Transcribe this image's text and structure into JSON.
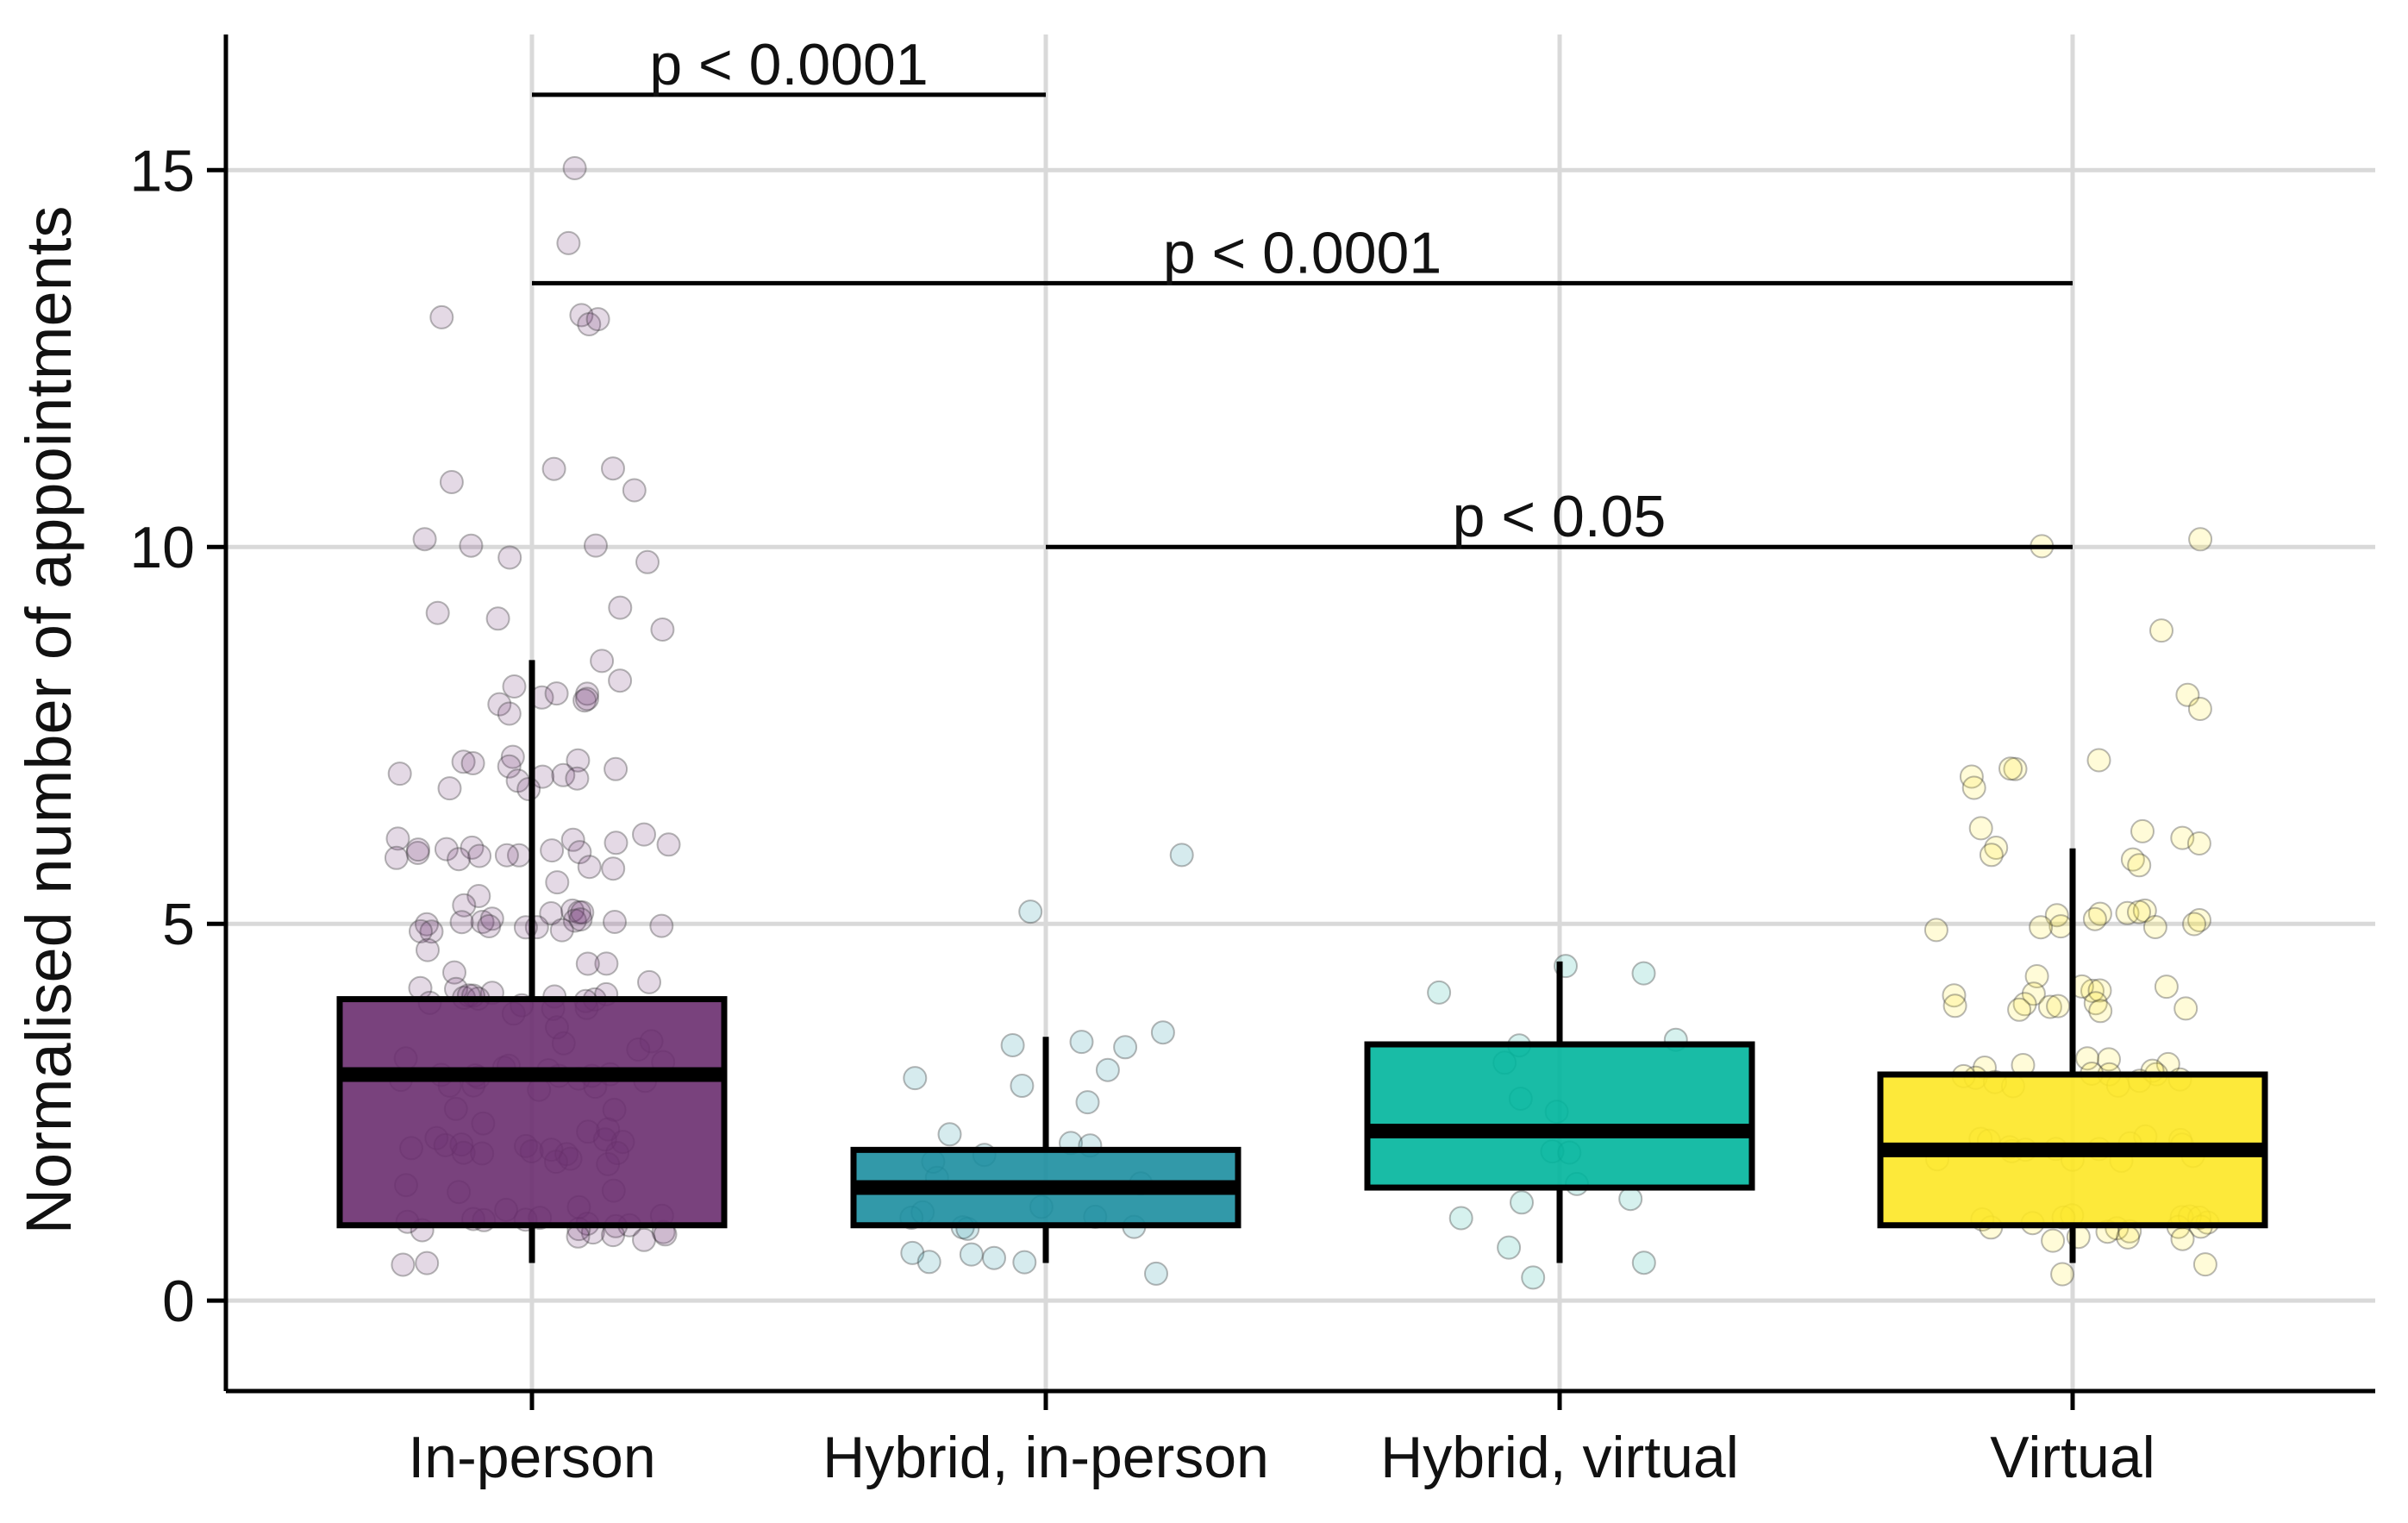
{
  "chart_data": {
    "type": "box",
    "title": "",
    "xlabel": "",
    "ylabel": "Normalised number of appointments",
    "ylim": [
      -1.2,
      16.8
    ],
    "yticks": [
      0,
      5,
      10,
      15
    ],
    "grid": true,
    "categories": [
      "In-person",
      "Hybrid, in-person",
      "Hybrid, virtual",
      "Virtual"
    ],
    "boxes": [
      {
        "category": "In-person",
        "whisker_low": 0.5,
        "q1": 1.0,
        "median": 3.0,
        "q3": 4.0,
        "whisker_high": 8.5,
        "color": "#6a2d6f"
      },
      {
        "category": "Hybrid, in-person",
        "whisker_low": 0.5,
        "q1": 1.0,
        "median": 1.5,
        "q3": 2.0,
        "whisker_high": 3.5,
        "color": "#1c8ea0"
      },
      {
        "category": "Hybrid, virtual",
        "whisker_low": 0.5,
        "q1": 1.5,
        "median": 2.25,
        "q3": 3.4,
        "whisker_high": 4.5,
        "color": "#00b59c"
      },
      {
        "category": "Virtual",
        "whisker_low": 0.5,
        "q1": 1.0,
        "median": 2.0,
        "q3": 3.0,
        "whisker_high": 6.0,
        "color": "#fde725"
      }
    ],
    "jitter_point_colors": [
      "#6a2d6f",
      "#1c8ea0",
      "#1bb0a2",
      "#fde725"
    ],
    "points": [
      [
        15.0,
        14.1,
        13.1,
        13.1,
        13.0,
        13.0,
        11.0,
        11.0,
        10.9,
        10.8,
        10.1,
        10.0,
        10.0,
        9.85,
        9.85,
        9.15,
        9.1,
        9.05,
        8.9,
        8.45,
        8.2,
        8.2,
        8.05,
        8.0,
        8.0,
        7.95,
        7.95,
        7.9,
        7.85,
        7.15,
        7.1,
        7.1,
        7.1,
        7.05,
        7.05,
        7.0,
        7.0,
        7.0,
        6.9,
        6.9,
        6.85,
        6.8,
        6.2,
        6.15,
        6.1,
        6.1,
        6.05,
        6.05,
        6.0,
        6.0,
        6.0,
        6.0,
        5.95,
        5.95,
        5.95,
        5.9,
        5.9,
        5.85,
        5.8,
        5.8,
        5.6,
        5.3,
        5.25,
        5.2,
        5.15,
        5.1,
        5.1,
        5.1,
        5.05,
        5.05,
        5.05,
        5.0,
        5.0,
        5.0,
        5.0,
        5.0,
        4.95,
        4.95,
        4.9,
        4.9,
        4.85,
        4.6,
        4.5,
        4.45,
        4.35,
        4.2,
        4.2,
        4.15,
        4.1,
        4.1,
        4.05,
        4.05,
        4.05,
        4.0,
        4.0,
        4.0,
        4.0,
        3.95,
        3.9,
        3.9,
        3.85,
        3.8,
        3.6,
        3.5,
        3.4,
        3.3,
        3.2,
        3.15,
        3.1,
        3.1,
        3.05,
        3.05,
        3.05,
        3.0,
        3.0,
        3.0,
        3.0,
        3.0,
        2.95,
        2.95,
        2.9,
        2.9,
        2.85,
        2.8,
        2.6,
        2.5,
        2.4,
        2.3,
        2.2,
        2.15,
        2.1,
        2.1,
        2.05,
        2.05,
        2.0,
        2.0,
        2.0,
        2.0,
        2.0,
        1.95,
        1.95,
        1.9,
        1.9,
        1.85,
        1.8,
        1.6,
        1.5,
        1.4,
        1.3,
        1.2,
        1.15,
        1.1,
        1.1,
        1.05,
        1.05,
        1.0,
        1.0,
        1.0,
        1.0,
        1.0,
        0.95,
        0.95,
        0.9,
        0.9,
        0.85,
        0.85,
        0.8,
        0.5,
        0.45
      ],
      [
        5.9,
        5.1,
        3.55,
        3.5,
        3.4,
        3.35,
        3.0,
        3.0,
        2.9,
        2.6,
        2.15,
        2.1,
        2.0,
        1.9,
        1.8,
        1.6,
        1.5,
        1.3,
        1.2,
        1.1,
        1.05,
        1.0,
        1.0,
        0.95,
        0.65,
        0.6,
        0.55,
        0.5,
        0.45,
        0.3
      ],
      [
        4.5,
        4.3,
        4.05,
        3.5,
        3.45,
        3.1,
        2.7,
        2.5,
        2.0,
        1.9,
        1.6,
        1.4,
        1.3,
        1.1,
        0.7,
        0.5,
        0.35
      ],
      [
        10.1,
        10.0,
        8.9,
        8.1,
        7.8,
        7.2,
        7.05,
        7.0,
        7.0,
        6.85,
        6.2,
        6.2,
        6.1,
        6.05,
        6.0,
        5.9,
        5.85,
        5.8,
        5.2,
        5.15,
        5.1,
        5.1,
        5.05,
        5.05,
        5.0,
        5.0,
        5.0,
        4.95,
        4.9,
        4.9,
        4.3,
        4.15,
        4.1,
        4.1,
        4.05,
        4.05,
        4.0,
        4.0,
        4.0,
        3.95,
        3.95,
        3.9,
        3.9,
        3.85,
        3.8,
        3.2,
        3.15,
        3.1,
        3.1,
        3.1,
        3.05,
        3.05,
        3.0,
        3.0,
        3.0,
        3.0,
        2.95,
        2.95,
        2.9,
        2.9,
        2.85,
        2.2,
        2.15,
        2.1,
        2.1,
        2.05,
        2.05,
        2.0,
        2.0,
        2.0,
        2.0,
        1.95,
        1.95,
        1.9,
        1.9,
        1.85,
        1.2,
        1.15,
        1.1,
        1.1,
        1.1,
        1.05,
        1.05,
        1.0,
        1.0,
        1.0,
        1.0,
        0.95,
        0.95,
        0.9,
        0.9,
        0.85,
        0.85,
        0.8,
        0.5,
        0.35
      ]
    ],
    "annotations": [
      {
        "label": "p < 0.0001",
        "from": "In-person",
        "to": "Hybrid, in-person",
        "y": 16.0
      },
      {
        "label": "p < 0.0001",
        "from": "In-person",
        "to": "Virtual",
        "y": 13.5
      },
      {
        "label": "p < 0.05",
        "from": "Hybrid, in-person",
        "to": "Virtual",
        "y": 10.0
      }
    ]
  }
}
